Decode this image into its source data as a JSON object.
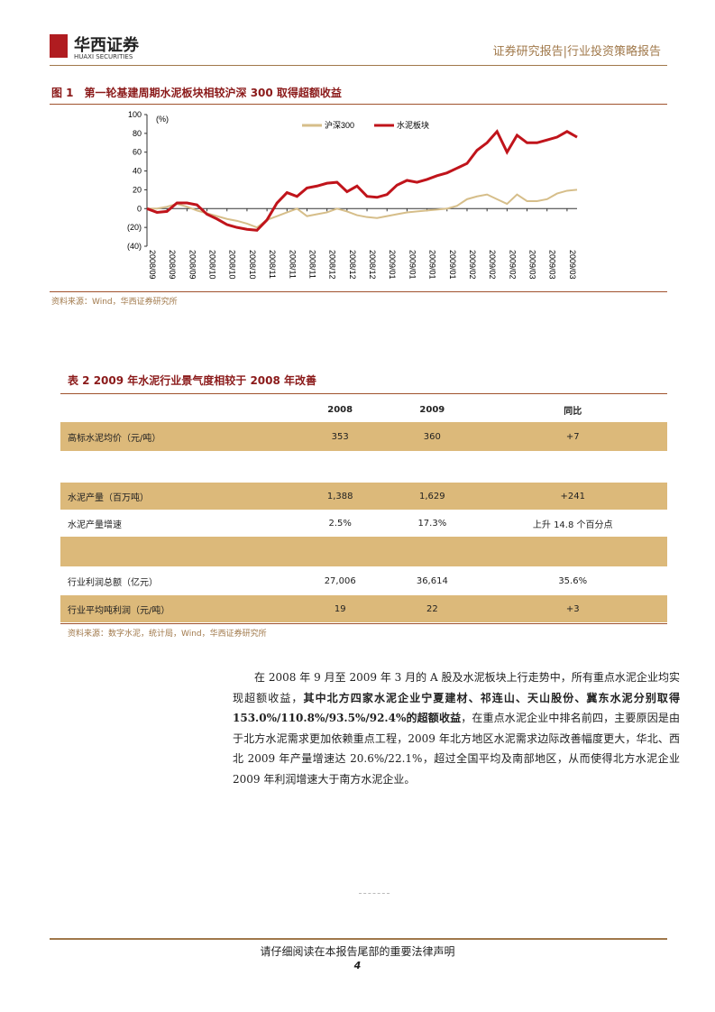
{
  "header": {
    "brand": "华西证券",
    "brand_en": "HUAXI SECURITIES",
    "report_type": "证券研究报告|行业投资策略报告"
  },
  "figure": {
    "title": "图 1　第一轮基建周期水泥板块相较沪深 300 取得超额收益",
    "source": "资料来源：Wind，华西证券研究所"
  },
  "chart_data": {
    "type": "line",
    "y_axis_label": "(%)",
    "categories": [
      "2008/09",
      null,
      "2008/09",
      null,
      "2008/09",
      null,
      "2008/10",
      null,
      "2008/10",
      null,
      "2008/10",
      null,
      "2008/11",
      null,
      "2008/11",
      null,
      "2008/11",
      null,
      "2008/12",
      null,
      "2008/12",
      null,
      "2008/12",
      null,
      "2009/01",
      null,
      "2009/01",
      null,
      "2009/01",
      null,
      "2009/01",
      null,
      "2009/02",
      null,
      "2009/02",
      null,
      "2009/02",
      null,
      "2009/03",
      null,
      "2009/03",
      null,
      "2009/03",
      null
    ],
    "series": [
      {
        "name": "沪深300",
        "color": "#d6be8a",
        "values": [
          0,
          0,
          2,
          5,
          2,
          -2,
          -5,
          -8,
          -11,
          -13,
          -16,
          -20,
          -12,
          -8,
          -4,
          0,
          -8,
          -6,
          -4,
          0,
          -3,
          -7,
          -9,
          -10,
          -8,
          -6,
          -4,
          -3,
          -2,
          -1,
          0,
          3,
          10,
          13,
          15,
          10,
          5,
          15,
          8,
          8,
          10,
          16,
          19,
          20
        ]
      },
      {
        "name": "水泥板块",
        "color": "#c0141b",
        "values": [
          0,
          -4,
          -3,
          6,
          6,
          4,
          -6,
          -11,
          -17,
          -20,
          -22,
          -23,
          -12,
          6,
          17,
          13,
          22,
          24,
          27,
          28,
          18,
          24,
          13,
          12,
          15,
          25,
          30,
          28,
          31,
          35,
          38,
          43,
          48,
          62,
          70,
          82,
          60,
          78,
          70,
          70,
          73,
          76,
          82,
          76
        ]
      }
    ],
    "ylim": [
      -40,
      100
    ],
    "yticks": [
      {
        "value": -40,
        "label": "(40)"
      },
      {
        "value": -20,
        "label": "(20)"
      },
      0,
      20,
      40,
      60,
      80,
      100
    ]
  },
  "table": {
    "title": "表 2 2009 年水泥行业景气度相较于 2008 年改善",
    "header": [
      "2008",
      "2009",
      "同比"
    ],
    "rows": [
      [
        "高标水泥均价（元/吨）",
        "353",
        "360",
        "+7"
      ],
      [
        "水泥产量（百万吨）",
        "1,388",
        "1,629",
        "+241"
      ],
      [
        "水泥产量增速",
        "2.5%",
        "17.3%",
        "上升 14.8 个百分点"
      ],
      [
        "行业利润总额（亿元）",
        "27,006",
        "36,614",
        "35.6%"
      ],
      [
        "行业平均吨利润（元/吨）",
        "19",
        "22",
        "+3"
      ]
    ],
    "source": "资料来源：数字水泥，统计局，Wind，华西证券研究所"
  },
  "body": {
    "paragraph": [
      "在 2008 年 9 月至 2009 年 3 月的 A 股及水泥板块上行走势中，所有重点水泥企业均实现超额收益，",
      "其中北方四家水泥企业宁夏建材、祁连山、天山股份、冀东水泥分别取得 153.0%/110.8%/93.5%/92.4%的超额收益",
      "，在重点水泥企业中排名前四，主要原因是由于北方水泥需求更加依赖重点工程，2009 年北方地区水泥需求边际改善幅度更大，华北、西北 2009 年产量增速达 20.6%/22.1%，超过全国平均及南部地区，从而使得北方水泥企业 2009 年利润增速大于南方水泥企业。"
    ]
  },
  "footer": {
    "notice": "请仔细阅读在本报告尾部的重要法律声明",
    "page": "4"
  }
}
